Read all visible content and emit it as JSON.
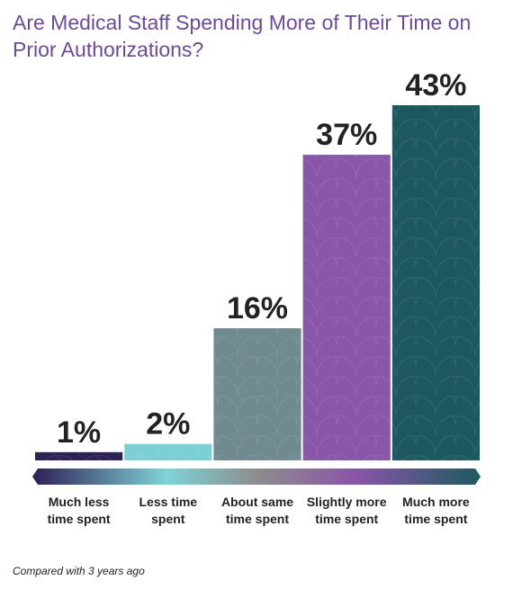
{
  "colors": {
    "title": "#6e4a96",
    "text": "#222222",
    "gradient_stops": [
      "#2e1f55",
      "#7fd3d8",
      "#8d8d8d",
      "#8a55a8",
      "#1d5a60"
    ]
  },
  "chart_data": {
    "type": "bar",
    "title": "Are Medical Staff Spending More of Their Time on Prior Authorizations?",
    "categories": [
      "Much less time spent",
      "Less time spent",
      "About same time spent",
      "Slightly more time spent",
      "Much more time spent"
    ],
    "category_lines": [
      [
        "Much less",
        "time spent"
      ],
      [
        "Less time",
        "spent"
      ],
      [
        "About same",
        "time spent"
      ],
      [
        "Slightly more",
        "time spent"
      ],
      [
        "Much more",
        "time spent"
      ]
    ],
    "values": [
      1,
      2,
      16,
      37,
      43
    ],
    "value_labels": [
      "1%",
      "2%",
      "16%",
      "37%",
      "43%"
    ],
    "bar_colors": [
      "#2e2255",
      "#7ccfd4",
      "#6f8b90",
      "#8a56a9",
      "#1d5860"
    ],
    "ylim": [
      0,
      43
    ],
    "grid": false,
    "legend": "none",
    "footnote": "Compared with 3 years ago"
  }
}
